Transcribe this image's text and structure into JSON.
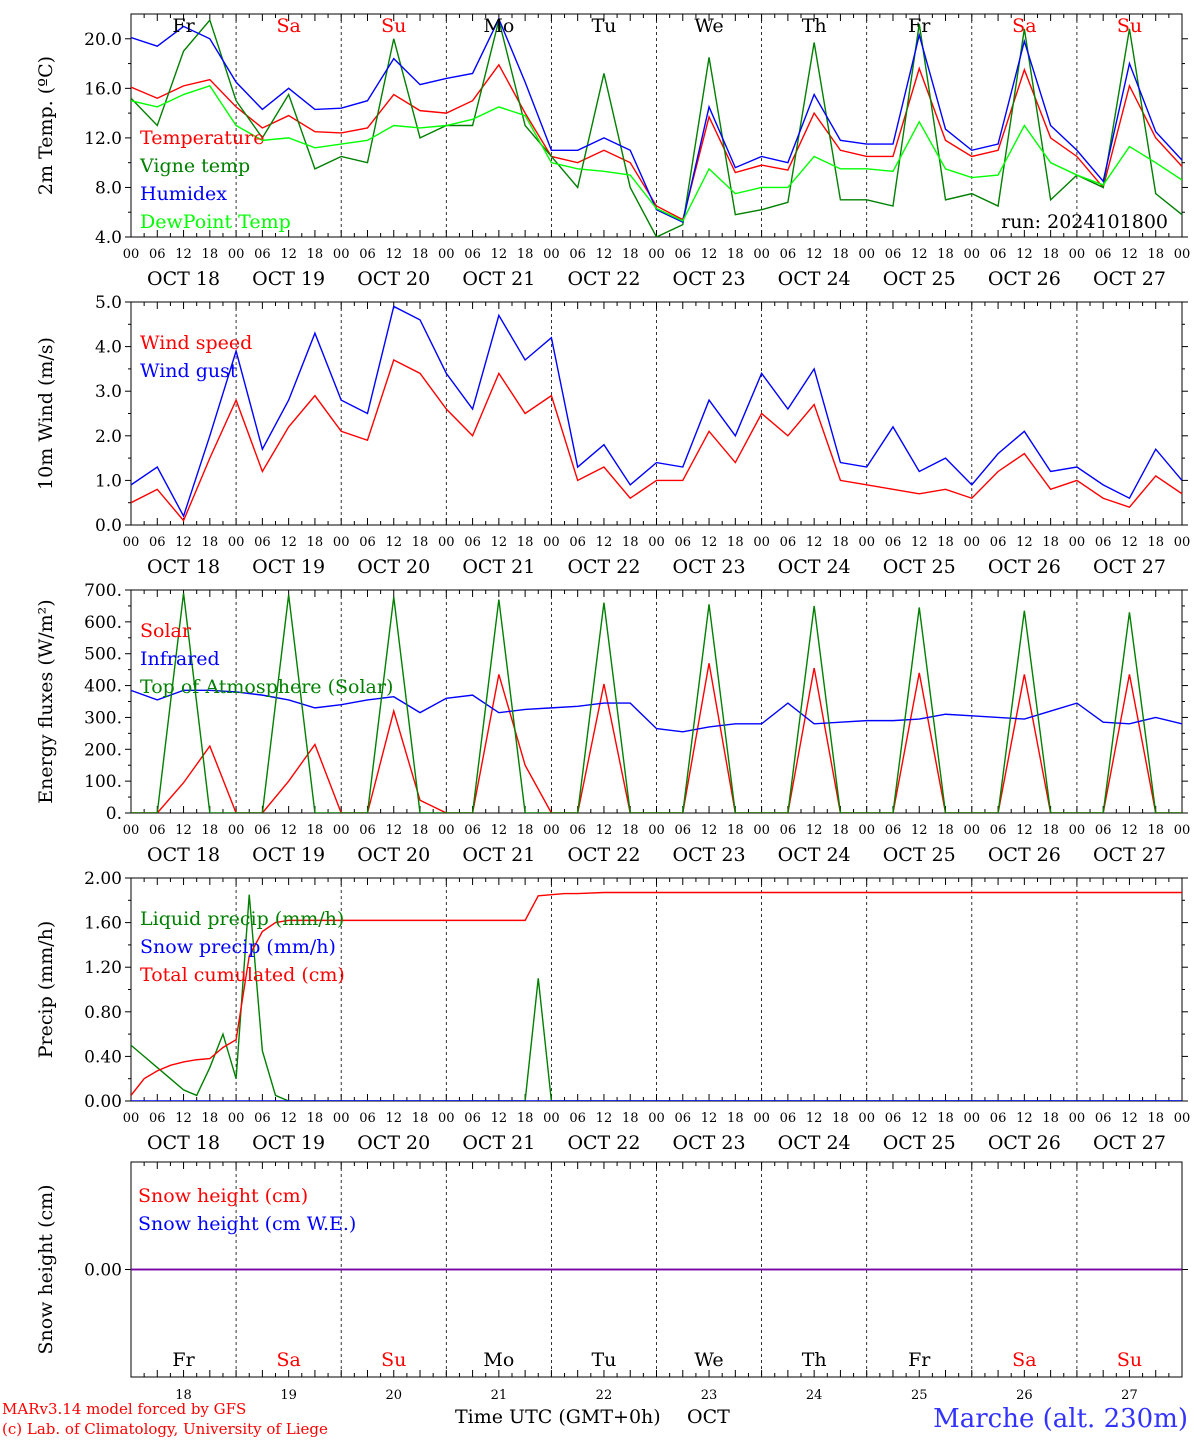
{
  "colors": {
    "red": "#ff0000",
    "green": "#008000",
    "blue": "#0000ff",
    "lime": "#00ff00",
    "axis": "#000000",
    "purple": "#8000a0",
    "location": "#3333ff"
  },
  "run_label": "run: 2024101800",
  "days": [
    {
      "name": "Fr",
      "weekend": false,
      "date": "OCT 18",
      "num": "18"
    },
    {
      "name": "Sa",
      "weekend": true,
      "date": "OCT 19",
      "num": "19"
    },
    {
      "name": "Su",
      "weekend": true,
      "date": "OCT 20",
      "num": "20"
    },
    {
      "name": "Mo",
      "weekend": false,
      "date": "OCT 21",
      "num": "21"
    },
    {
      "name": "Tu",
      "weekend": false,
      "date": "OCT 22",
      "num": "22"
    },
    {
      "name": "We",
      "weekend": false,
      "date": "OCT 23",
      "num": "23"
    },
    {
      "name": "Th",
      "weekend": false,
      "date": "OCT 24",
      "num": "24"
    },
    {
      "name": "Fr",
      "weekend": false,
      "date": "OCT 25",
      "num": "25"
    },
    {
      "name": "Sa",
      "weekend": true,
      "date": "OCT 26",
      "num": "26"
    },
    {
      "name": "Su",
      "weekend": true,
      "date": "OCT 27",
      "num": "27"
    }
  ],
  "hour_labels": [
    "00",
    "06",
    "12",
    "18"
  ],
  "final_hour_label": "00",
  "footer": {
    "model": "MARv3.14 model forced by GFS",
    "credit": "(c) Lab. of Climatology, University of Liege",
    "xlabel": "Time UTC (GMT+0h)",
    "month": "OCT",
    "location": "Marche (alt. 230m)"
  },
  "chart_data": [
    {
      "type": "line",
      "ylabel": "2m Temp. (ºC)",
      "ylim": [
        4,
        22
      ],
      "yticks": [
        4,
        8,
        12,
        16,
        20
      ],
      "tick_decimals": 1,
      "x_hours": [
        0,
        6,
        12,
        18,
        24,
        30,
        36,
        42,
        48,
        54,
        60,
        66,
        72,
        78,
        84,
        90,
        96,
        102,
        108,
        114,
        120,
        126,
        132,
        138,
        144,
        150,
        156,
        162,
        168,
        174,
        180,
        186,
        192,
        198,
        204,
        210,
        216,
        222,
        228,
        234,
        240
      ],
      "series": [
        {
          "name": "Temperature",
          "color": "#ff0000",
          "values": [
            16.1,
            15.2,
            16.2,
            16.7,
            14.5,
            12.8,
            13.8,
            12.5,
            12.4,
            12.8,
            15.5,
            14.2,
            14.0,
            15.0,
            17.9,
            14.0,
            10.5,
            10.0,
            11.0,
            10.0,
            6.5,
            5.4,
            13.7,
            9.2,
            9.8,
            9.4,
            14.0,
            11.0,
            10.5,
            10.5,
            17.6,
            11.8,
            10.5,
            11.0,
            17.5,
            12.0,
            10.5,
            8.0,
            16.2,
            12.0,
            9.7
          ]
        },
        {
          "name": "Vigne temp",
          "color": "#008000",
          "values": [
            15.2,
            13.0,
            19.0,
            21.5,
            15.0,
            12.0,
            15.5,
            9.5,
            10.5,
            10.0,
            20.0,
            12.0,
            13.0,
            13.0,
            21.5,
            13.0,
            10.5,
            8.0,
            17.2,
            8.0,
            4.0,
            5.0,
            18.5,
            5.8,
            6.2,
            6.8,
            19.7,
            7.0,
            7.0,
            6.5,
            21.2,
            7.0,
            7.5,
            6.5,
            20.8,
            7.0,
            9.0,
            8.0,
            20.8,
            7.5,
            5.8
          ]
        },
        {
          "name": "Humidex",
          "color": "#0000ff",
          "values": [
            20.1,
            19.4,
            21.0,
            20.0,
            16.5,
            14.3,
            16.0,
            14.3,
            14.4,
            15.0,
            18.4,
            16.3,
            16.8,
            17.2,
            21.6,
            16.5,
            11.0,
            11.0,
            12.0,
            11.0,
            6.2,
            5.2,
            14.5,
            9.6,
            10.5,
            10.0,
            15.5,
            11.8,
            11.5,
            11.5,
            20.3,
            12.7,
            11.0,
            11.5,
            19.8,
            13.0,
            11.0,
            8.5,
            18.0,
            12.5,
            10.2
          ]
        },
        {
          "name": "DewPoint Temp",
          "color": "#00ff00",
          "values": [
            15.0,
            14.5,
            15.5,
            16.2,
            13.0,
            11.8,
            12.0,
            11.2,
            11.5,
            11.8,
            13.0,
            12.8,
            13.0,
            13.5,
            14.5,
            13.8,
            10.0,
            9.5,
            9.3,
            9.0,
            6.3,
            5.3,
            9.5,
            7.5,
            8.0,
            8.0,
            10.5,
            9.5,
            9.5,
            9.3,
            13.3,
            9.5,
            8.8,
            9.0,
            13.0,
            10.0,
            9.0,
            8.2,
            11.3,
            10.0,
            8.6
          ]
        }
      ]
    },
    {
      "type": "line",
      "ylabel": "10m Wind (m/s)",
      "ylim": [
        0,
        5
      ],
      "yticks": [
        0,
        1,
        2,
        3,
        4,
        5
      ],
      "tick_decimals": 1,
      "x_hours": [
        0,
        6,
        12,
        18,
        24,
        30,
        36,
        42,
        48,
        54,
        60,
        66,
        72,
        78,
        84,
        90,
        96,
        102,
        108,
        114,
        120,
        126,
        132,
        138,
        144,
        150,
        156,
        162,
        168,
        174,
        180,
        186,
        192,
        198,
        204,
        210,
        216,
        222,
        228,
        234,
        240
      ],
      "series": [
        {
          "name": "Wind speed",
          "color": "#ff0000",
          "values": [
            0.5,
            0.8,
            0.1,
            1.5,
            2.8,
            1.2,
            2.2,
            2.9,
            2.1,
            1.9,
            3.7,
            3.4,
            2.6,
            2.0,
            3.4,
            2.5,
            2.9,
            1.0,
            1.3,
            0.6,
            1.0,
            1.0,
            2.1,
            1.4,
            2.5,
            2.0,
            2.7,
            1.0,
            0.9,
            0.8,
            0.7,
            0.8,
            0.6,
            1.2,
            1.6,
            0.8,
            1.0,
            0.6,
            0.4,
            1.1,
            0.7
          ]
        },
        {
          "name": "Wind gust",
          "color": "#0000ff",
          "values": [
            0.9,
            1.3,
            0.2,
            2.0,
            3.9,
            1.7,
            2.8,
            4.3,
            2.8,
            2.5,
            4.9,
            4.6,
            3.4,
            2.6,
            4.7,
            3.7,
            4.2,
            1.3,
            1.8,
            0.9,
            1.4,
            1.3,
            2.8,
            2.0,
            3.4,
            2.6,
            3.5,
            1.4,
            1.3,
            2.2,
            1.2,
            1.5,
            0.9,
            1.6,
            2.1,
            1.2,
            1.3,
            0.9,
            0.6,
            1.7,
            1.0
          ]
        }
      ]
    },
    {
      "type": "line",
      "ylabel": "Energy fluxes (W/m²)",
      "ylim": [
        0,
        700
      ],
      "yticks": [
        0,
        100,
        200,
        300,
        400,
        500,
        600,
        700
      ],
      "tick_decimals": 0,
      "tick_suffix": ".",
      "x_hours": [
        0,
        6,
        12,
        18,
        24,
        30,
        36,
        42,
        48,
        54,
        60,
        66,
        72,
        78,
        84,
        90,
        96,
        102,
        108,
        114,
        120,
        126,
        132,
        138,
        144,
        150,
        156,
        162,
        168,
        174,
        180,
        186,
        192,
        198,
        204,
        210,
        216,
        222,
        228,
        234,
        240
      ],
      "series": [
        {
          "name": "Solar",
          "color": "#ff0000",
          "values": [
            0,
            0,
            95,
            210,
            0,
            0,
            100,
            215,
            0,
            0,
            320,
            40,
            0,
            0,
            435,
            150,
            0,
            0,
            405,
            0,
            0,
            0,
            470,
            0,
            0,
            0,
            455,
            0,
            0,
            0,
            440,
            0,
            0,
            0,
            435,
            0,
            0,
            0,
            435,
            0,
            0
          ]
        },
        {
          "name": "Infrared",
          "color": "#0000ff",
          "values": [
            385,
            355,
            385,
            385,
            380,
            370,
            355,
            330,
            340,
            355,
            365,
            315,
            360,
            370,
            315,
            325,
            330,
            335,
            345,
            345,
            265,
            255,
            270,
            280,
            280,
            345,
            280,
            285,
            290,
            290,
            295,
            310,
            305,
            300,
            295,
            320,
            345,
            285,
            280,
            300,
            280
          ]
        },
        {
          "name": "Top of Atmosphere (Solar)",
          "color": "#008000",
          "values": [
            0,
            0,
            690,
            0,
            0,
            0,
            685,
            0,
            0,
            0,
            678,
            0,
            0,
            0,
            670,
            0,
            0,
            0,
            660,
            0,
            0,
            0,
            655,
            0,
            0,
            0,
            650,
            0,
            0,
            0,
            645,
            0,
            0,
            0,
            635,
            0,
            0,
            0,
            630,
            0,
            0
          ]
        }
      ]
    },
    {
      "type": "line",
      "ylabel": "Precip (mm/h)",
      "ylim": [
        0,
        2
      ],
      "yticks": [
        0,
        0.4,
        0.8,
        1.2,
        1.6,
        2.0
      ],
      "tick_decimals": 2,
      "x_hours": [
        0,
        3,
        6,
        9,
        12,
        15,
        18,
        21,
        24,
        27,
        30,
        33,
        36,
        42,
        48,
        54,
        60,
        66,
        72,
        78,
        84,
        90,
        93,
        96,
        99,
        102,
        108,
        114,
        120,
        132,
        144,
        156,
        168,
        180,
        192,
        204,
        216,
        228,
        240
      ],
      "series": [
        {
          "name": "Liquid precip (mm/h)",
          "color": "#008000",
          "values": [
            0.5,
            0.4,
            0.3,
            0.2,
            0.1,
            0.05,
            0.3,
            0.6,
            0.2,
            1.85,
            0.45,
            0.05,
            0.0,
            0.0,
            0.0,
            0.0,
            0.0,
            0.0,
            0.0,
            0.0,
            0.0,
            0.0,
            1.1,
            0.0,
            0.0,
            0.0,
            0.0,
            0.0,
            0.0,
            0.0,
            0.0,
            0.0,
            0.0,
            0.0,
            0.0,
            0.0,
            0.0,
            0.0,
            0.0
          ]
        },
        {
          "name": "Snow precip (mm/h)",
          "color": "#0000ff",
          "values": [
            0,
            0,
            0,
            0,
            0,
            0,
            0,
            0,
            0,
            0,
            0,
            0,
            0,
            0,
            0,
            0,
            0,
            0,
            0,
            0,
            0,
            0,
            0,
            0,
            0,
            0,
            0,
            0,
            0,
            0,
            0,
            0,
            0,
            0,
            0,
            0,
            0,
            0,
            0
          ]
        },
        {
          "name": "Total cumulated (cm)",
          "color": "#ff0000",
          "values": [
            0.05,
            0.2,
            0.27,
            0.32,
            0.35,
            0.37,
            0.38,
            0.48,
            0.55,
            1.3,
            1.52,
            1.6,
            1.62,
            1.62,
            1.62,
            1.62,
            1.62,
            1.62,
            1.62,
            1.62,
            1.62,
            1.62,
            1.84,
            1.85,
            1.86,
            1.86,
            1.87,
            1.87,
            1.87,
            1.87,
            1.87,
            1.87,
            1.87,
            1.87,
            1.87,
            1.87,
            1.87,
            1.87,
            1.87
          ]
        }
      ]
    },
    {
      "type": "line",
      "ylabel": "Snow height (cm)",
      "ylim": [
        -1,
        1
      ],
      "yticks": [
        0
      ],
      "tick_decimals": 2,
      "x_hours": [
        0,
        240
      ],
      "series": [
        {
          "name": "Snow height (cm)",
          "color": "#ff0000",
          "values": [
            0,
            0
          ]
        },
        {
          "name": "Snow height (cm W.E.)",
          "color": "#0000ff",
          "values": [
            0,
            0
          ]
        }
      ]
    }
  ]
}
